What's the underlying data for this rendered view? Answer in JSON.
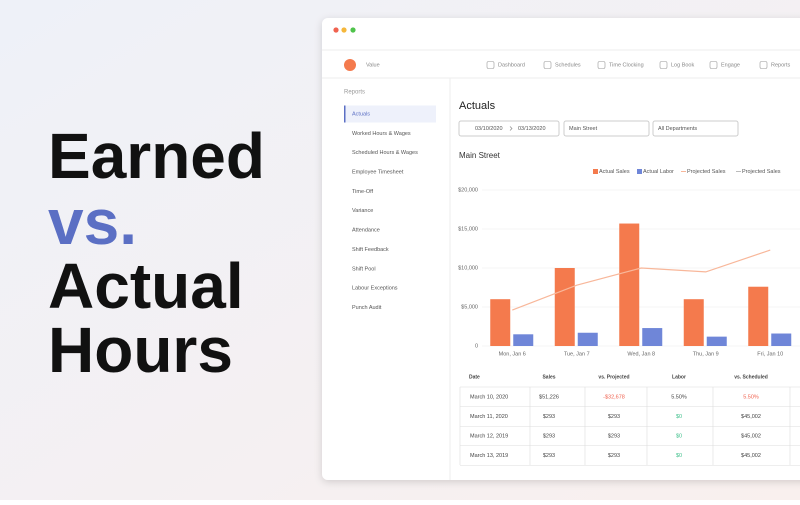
{
  "headline": {
    "lines": [
      "Earned",
      "vs.",
      "Actual",
      "Hours"
    ]
  },
  "nav": {
    "brand": "Value",
    "items": [
      "Dashboard",
      "Schedules",
      "Time Clocking",
      "Log Book",
      "Engage",
      "Reports"
    ]
  },
  "sidebar": {
    "heading": "Reports",
    "items": [
      "Actuals",
      "Worked Hours & Wages",
      "Scheduled Hours & Wages",
      "Employee Timesheet",
      "Time-Off",
      "Variance",
      "Attendance",
      "Shift Feedback",
      "Shift Pool",
      "Labour Exceptions",
      "Punch Audit"
    ]
  },
  "main": {
    "title": "Actuals",
    "date_from": "03/10/2020",
    "date_to": "03/13/2020",
    "location": "Main Street",
    "department": "All Departments"
  },
  "chart_data": {
    "type": "bar",
    "title": "Main Street",
    "categories": [
      "Mon, Jan 6",
      "Tue, Jan 7",
      "Wed, Jan 8",
      "Thu, Jan 9",
      "Fri, Jan 10"
    ],
    "series": [
      {
        "name": "Actual Sales",
        "color": "#f47a4d",
        "values": [
          6000,
          10000,
          15700,
          6000,
          7600
        ]
      },
      {
        "name": "Actual Labor",
        "color": "#6f86d8",
        "values": [
          1500,
          1700,
          2300,
          1200,
          1600
        ]
      },
      {
        "name": "Projected Sales",
        "color": "#f8b79a",
        "type": "line",
        "values": [
          4600,
          7800,
          10000,
          9500,
          12300
        ]
      },
      {
        "name": "Projected Sales",
        "color": "#bbbbbb",
        "type": "line",
        "values": [
          null,
          null,
          null,
          null,
          null
        ]
      }
    ],
    "ylim": [
      0,
      20000
    ],
    "yticks": [
      0,
      {
        "value": 5000,
        "label": "$5,000"
      },
      {
        "value": 10000,
        "label": "$10,000"
      },
      {
        "value": 15000,
        "label": "$15,000"
      },
      {
        "value": 20000,
        "label": "$20,000"
      }
    ],
    "grid": true
  },
  "table": {
    "columns": [
      "Date",
      "Sales",
      "vs. Projected",
      "Labor",
      "vs. Scheduled"
    ],
    "rows": [
      [
        "March 10, 2020",
        "$51,226",
        "-$32,678",
        "5.50%",
        "5.50%"
      ],
      [
        "March 11, 2020",
        "$293",
        "$293",
        "$0",
        "$45,002"
      ],
      [
        "March 12, 2019",
        "$293",
        "$293",
        "$0",
        "$45,002"
      ],
      [
        "March 13, 2019",
        "$293",
        "$293",
        "$0",
        "$45,002"
      ]
    ]
  }
}
